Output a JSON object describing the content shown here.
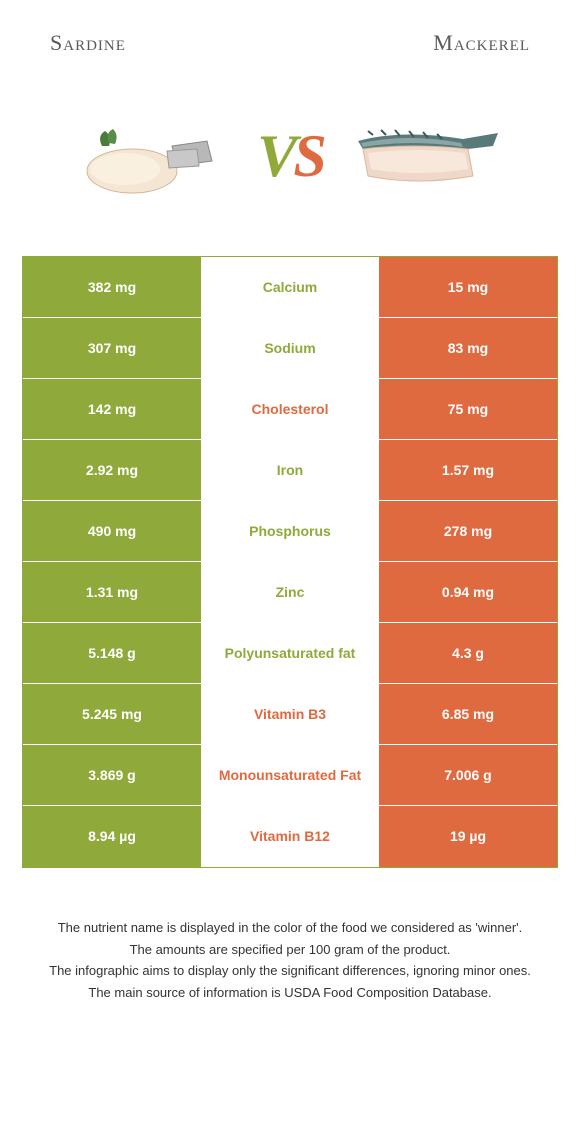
{
  "header": {
    "left_title": "Sardine",
    "right_title": "Mackerel"
  },
  "vs": {
    "v": "V",
    "s": "S"
  },
  "colors": {
    "left": "#8fa93a",
    "right": "#e06a3f",
    "winner_left": "#8fa93a",
    "winner_right": "#e06a3f",
    "text_white": "#ffffff",
    "background": "#ffffff"
  },
  "rows": [
    {
      "left": "382 mg",
      "label": "Calcium",
      "right": "15 mg",
      "winner": "left"
    },
    {
      "left": "307 mg",
      "label": "Sodium",
      "right": "83 mg",
      "winner": "left"
    },
    {
      "left": "142 mg",
      "label": "Cholesterol",
      "right": "75 mg",
      "winner": "right"
    },
    {
      "left": "2.92 mg",
      "label": "Iron",
      "right": "1.57 mg",
      "winner": "left"
    },
    {
      "left": "490 mg",
      "label": "Phosphorus",
      "right": "278 mg",
      "winner": "left"
    },
    {
      "left": "1.31 mg",
      "label": "Zinc",
      "right": "0.94 mg",
      "winner": "left"
    },
    {
      "left": "5.148 g",
      "label": "Polyunsaturated fat",
      "right": "4.3 g",
      "winner": "left"
    },
    {
      "left": "5.245 mg",
      "label": "Vitamin B3",
      "right": "6.85 mg",
      "winner": "right"
    },
    {
      "left": "3.869 g",
      "label": "Monounsaturated Fat",
      "right": "7.006 g",
      "winner": "right"
    },
    {
      "left": "8.94 µg",
      "label": "Vitamin B12",
      "right": "19 µg",
      "winner": "right"
    }
  ],
  "footer": {
    "line1": "The nutrient name is displayed in the color of the food we considered as 'winner'.",
    "line2": "The amounts are specified per 100 gram of the product.",
    "line3": "The infographic aims to display only the significant differences, ignoring minor ones.",
    "line4": "The main source of information is USDA Food Composition Database."
  }
}
